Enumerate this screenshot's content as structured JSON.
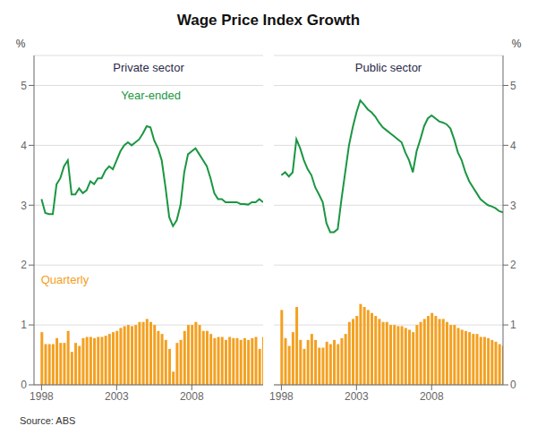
{
  "title": "Wage Price Index Growth",
  "source": "Source: ABS",
  "chart_data": [
    {
      "type": "bar",
      "title": "Private sector",
      "ylabel": "%",
      "x": [
        1998,
        1998.25,
        1998.5,
        1998.75,
        1999,
        1999.25,
        1999.5,
        1999.75,
        2000,
        2000.25,
        2000.5,
        2000.75,
        2001,
        2001.25,
        2001.5,
        2001.75,
        2002,
        2002.25,
        2002.5,
        2002.75,
        2003,
        2003.25,
        2003.5,
        2003.75,
        2004,
        2004.25,
        2004.5,
        2004.75,
        2005,
        2005.25,
        2005.5,
        2005.75,
        2006,
        2006.25,
        2006.5,
        2006.75,
        2007,
        2007.25,
        2007.5,
        2007.75,
        2008,
        2008.25,
        2008.5,
        2008.75,
        2009,
        2009.25,
        2009.5,
        2009.75,
        2010,
        2010.25,
        2010.5,
        2010.75,
        2011,
        2011.25,
        2011.5,
        2011.75,
        2012,
        2012.25,
        2012.5,
        2012.75
      ],
      "xlim": [
        1997.5,
        2012.75
      ],
      "xticks": [
        1998,
        2003,
        2008
      ],
      "ylim": [
        0,
        5.5
      ],
      "yticks": [
        0,
        1,
        2,
        3,
        4,
        5
      ],
      "grid": true,
      "series": [
        {
          "type": "bar",
          "color": "#f4a020",
          "values": [
            0.88,
            0.68,
            0.68,
            0.68,
            0.78,
            0.7,
            0.7,
            0.9,
            0.55,
            0.7,
            0.65,
            0.78,
            0.8,
            0.8,
            0.78,
            0.8,
            0.8,
            0.82,
            0.85,
            0.88,
            0.9,
            0.95,
            0.98,
            1.0,
            0.98,
            1.0,
            1.05,
            1.05,
            1.1,
            1.05,
            1.0,
            0.9,
            0.85,
            0.75,
            0.6,
            0.22,
            0.7,
            0.75,
            0.9,
            1.0,
            1.0,
            1.05,
            1.0,
            0.9,
            0.9,
            0.85,
            0.78,
            0.8,
            0.8,
            0.75,
            0.8,
            0.78,
            0.78,
            0.75,
            0.78,
            0.75,
            0.78,
            0.8,
            0.6,
            0.8
          ]
        },
        {
          "type": "line",
          "color": "#1a9641",
          "values": [
            3.1,
            2.87,
            2.85,
            2.85,
            3.35,
            3.45,
            3.65,
            3.75,
            3.18,
            3.18,
            3.28,
            3.2,
            3.25,
            3.4,
            3.35,
            3.45,
            3.45,
            3.58,
            3.65,
            3.6,
            3.75,
            3.9,
            4.0,
            4.05,
            4.0,
            4.05,
            4.1,
            4.2,
            4.32,
            4.3,
            4.08,
            3.95,
            3.75,
            3.3,
            2.8,
            2.65,
            2.75,
            3.0,
            3.55,
            3.85,
            3.9,
            3.95,
            3.85,
            3.75,
            3.65,
            3.45,
            3.2,
            3.1,
            3.1,
            3.05,
            3.05,
            3.05,
            3.05,
            3.02,
            3.02,
            3.01,
            3.05,
            3.05,
            3.1,
            3.05
          ]
        }
      ],
      "annotations": [
        {
          "text": "Year-ended",
          "color": "#1a9641"
        },
        {
          "text": "Quarterly",
          "color": "#f4a020"
        }
      ]
    },
    {
      "type": "bar",
      "title": "Public sector",
      "ylabel": "%",
      "x": [
        1998,
        1998.25,
        1998.5,
        1998.75,
        1999,
        1999.25,
        1999.5,
        1999.75,
        2000,
        2000.25,
        2000.5,
        2000.75,
        2001,
        2001.25,
        2001.5,
        2001.75,
        2002,
        2002.25,
        2002.5,
        2002.75,
        2003,
        2003.25,
        2003.5,
        2003.75,
        2004,
        2004.25,
        2004.5,
        2004.75,
        2005,
        2005.25,
        2005.5,
        2005.75,
        2006,
        2006.25,
        2006.5,
        2006.75,
        2007,
        2007.25,
        2007.5,
        2007.75,
        2008,
        2008.25,
        2008.5,
        2008.75,
        2009,
        2009.25,
        2009.5,
        2009.75,
        2010,
        2010.25,
        2010.5,
        2010.75,
        2011,
        2011.25,
        2011.5,
        2011.75,
        2012,
        2012.25,
        2012.5,
        2012.75
      ],
      "xlim": [
        1997.5,
        2012.75
      ],
      "xticks": [
        1998,
        2003,
        2008
      ],
      "ylim": [
        0,
        5.5
      ],
      "yticks": [
        0,
        1,
        2,
        3,
        4,
        5
      ],
      "grid": true,
      "series": [
        {
          "type": "bar",
          "color": "#f4a020",
          "values": [
            1.25,
            0.78,
            0.65,
            0.88,
            1.3,
            0.75,
            0.6,
            0.75,
            0.85,
            0.75,
            0.62,
            0.62,
            0.72,
            0.68,
            0.75,
            0.68,
            0.78,
            0.85,
            1.05,
            1.1,
            1.15,
            1.35,
            1.3,
            1.25,
            1.2,
            1.15,
            1.1,
            1.05,
            1.05,
            1.0,
            1.0,
            0.98,
            0.98,
            0.95,
            0.92,
            0.88,
            1.0,
            1.05,
            1.1,
            1.15,
            1.2,
            1.15,
            1.1,
            1.1,
            1.05,
            1.0,
            1.0,
            0.95,
            0.92,
            0.9,
            0.88,
            0.85,
            0.85,
            0.8,
            0.8,
            0.78,
            0.75,
            0.72,
            0.68,
            0.65
          ]
        },
        {
          "type": "line",
          "color": "#1a9641",
          "values": [
            3.5,
            3.55,
            3.48,
            3.55,
            4.1,
            3.95,
            3.75,
            3.6,
            3.5,
            3.3,
            3.18,
            3.05,
            2.7,
            2.55,
            2.55,
            2.6,
            3.1,
            3.55,
            4.0,
            4.3,
            4.55,
            4.75,
            4.68,
            4.6,
            4.55,
            4.48,
            4.38,
            4.3,
            4.25,
            4.2,
            4.15,
            4.1,
            4.05,
            3.88,
            3.75,
            3.55,
            3.9,
            4.1,
            4.32,
            4.45,
            4.5,
            4.45,
            4.4,
            4.38,
            4.35,
            4.28,
            4.1,
            3.88,
            3.75,
            3.55,
            3.4,
            3.3,
            3.2,
            3.1,
            3.05,
            3.0,
            2.98,
            2.95,
            2.9,
            2.88
          ]
        }
      ]
    }
  ]
}
